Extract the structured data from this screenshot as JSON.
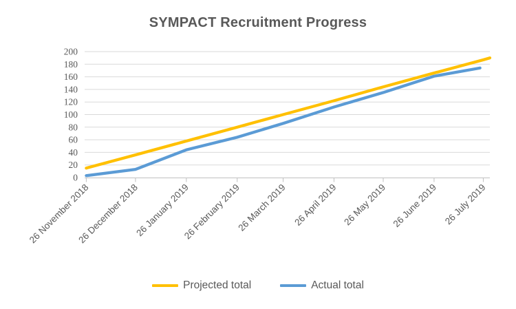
{
  "title": "SYMPACT Recruitment Progress",
  "chart_data": {
    "type": "line",
    "title": "SYMPACT Recruitment Progress",
    "xlabel": "",
    "ylabel": "",
    "ylim": [
      0,
      200
    ],
    "y_ticks": [
      0,
      20,
      40,
      60,
      80,
      100,
      120,
      140,
      160,
      180,
      200
    ],
    "grid": "horizontal gridlines every 20, light gray",
    "legend_position": "bottom-center",
    "x_axis": {
      "kind": "date",
      "tick_labels": [
        "26 November 2018",
        "26 December 2018",
        "26 January 2019",
        "26 February 2019",
        "26 March 2019",
        "26 April 2019",
        "26 May 2019",
        "26 June 2019",
        "26 July 2019"
      ],
      "tick_days_from_start": [
        0,
        30,
        61,
        92,
        120,
        151,
        181,
        212,
        242
      ],
      "domain_days": [
        -1,
        246
      ],
      "label_rotation_deg": -45
    },
    "series": [
      {
        "name": "Projected total",
        "color": "#FFC000",
        "points": [
          {
            "day": 0,
            "value": 15
          },
          {
            "day": 30,
            "value": 36
          },
          {
            "day": 61,
            "value": 58
          },
          {
            "day": 92,
            "value": 80
          },
          {
            "day": 120,
            "value": 100
          },
          {
            "day": 151,
            "value": 122
          },
          {
            "day": 181,
            "value": 144
          },
          {
            "day": 212,
            "value": 166
          },
          {
            "day": 242,
            "value": 187
          },
          {
            "day": 246,
            "value": 190
          }
        ]
      },
      {
        "name": "Actual total",
        "color": "#5B9BD5",
        "points": [
          {
            "day": 0,
            "value": 3
          },
          {
            "day": 30,
            "value": 13
          },
          {
            "day": 61,
            "value": 44
          },
          {
            "day": 92,
            "value": 64
          },
          {
            "day": 120,
            "value": 86
          },
          {
            "day": 151,
            "value": 112
          },
          {
            "day": 181,
            "value": 135
          },
          {
            "day": 212,
            "value": 161
          },
          {
            "day": 240,
            "value": 174
          }
        ]
      }
    ],
    "colors": {
      "title_text": "#595959",
      "tick_text": "#595959",
      "gridline": "#D9D9D9",
      "axis_line": "#BFBFBF",
      "background": "#FFFFFF"
    }
  }
}
